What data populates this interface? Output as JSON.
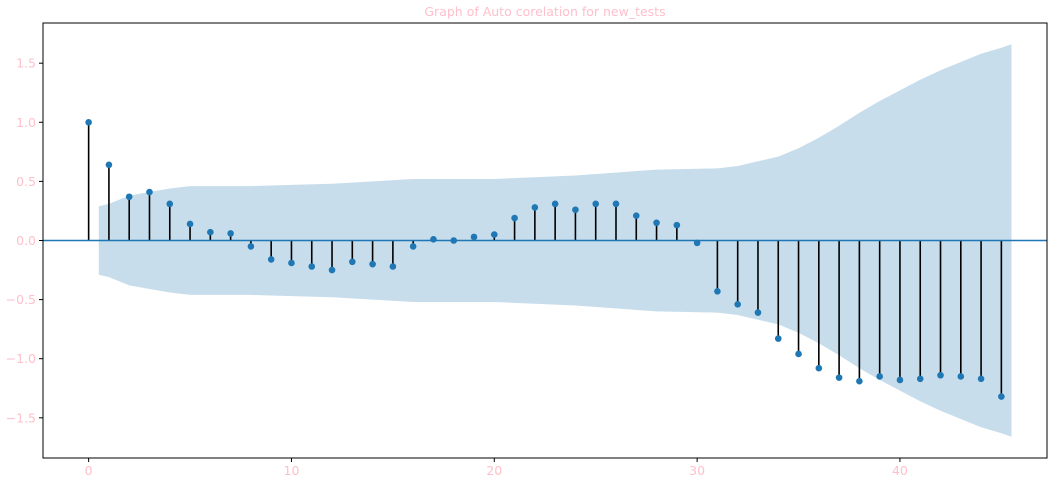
{
  "chart_data": {
    "type": "stem",
    "title": "Graph of Auto corelation for new_tests",
    "xlabel": "",
    "ylabel": "",
    "xlim": [
      -2.25,
      47.25
    ],
    "ylim": [
      -1.84,
      1.84
    ],
    "xticks": [
      0,
      10,
      20,
      30,
      40
    ],
    "yticks": [
      -1.5,
      -1.0,
      -0.5,
      0.0,
      0.5,
      1.0,
      1.5
    ],
    "ytick_labels": [
      "−1.5",
      "−1.0",
      "−0.5",
      "0.0",
      "0.5",
      "1.0",
      "1.5"
    ],
    "grid": false,
    "lags": [
      0,
      1,
      2,
      3,
      4,
      5,
      6,
      7,
      8,
      9,
      10,
      11,
      12,
      13,
      14,
      15,
      16,
      17,
      18,
      19,
      20,
      21,
      22,
      23,
      24,
      25,
      26,
      27,
      28,
      29,
      30,
      31,
      32,
      33,
      34,
      35,
      36,
      37,
      38,
      39,
      40,
      41,
      42,
      43,
      44,
      45
    ],
    "acf": [
      1.0,
      0.64,
      0.37,
      0.41,
      0.31,
      0.14,
      0.07,
      0.06,
      -0.05,
      -0.16,
      -0.19,
      -0.22,
      -0.25,
      -0.18,
      -0.2,
      -0.22,
      -0.05,
      0.01,
      0.0,
      0.03,
      0.05,
      0.19,
      0.28,
      0.31,
      0.26,
      0.31,
      0.31,
      0.21,
      0.15,
      0.13,
      -0.02,
      -0.43,
      -0.54,
      -0.61,
      -0.83,
      -0.96,
      -1.08,
      -1.16,
      -1.19,
      -1.15,
      -1.18,
      -1.17,
      -1.14,
      -1.15,
      -1.17,
      -1.32
    ],
    "confidence_band": {
      "lags": [
        0.5,
        1,
        2,
        3,
        4,
        5,
        6,
        7,
        8,
        10,
        12,
        14,
        16,
        20,
        24,
        28,
        31,
        32,
        33,
        34,
        35,
        36,
        37,
        38,
        39,
        40,
        41,
        42,
        43,
        44,
        45,
        45.5
      ],
      "upper": [
        0.29,
        0.31,
        0.38,
        0.41,
        0.44,
        0.46,
        0.46,
        0.46,
        0.46,
        0.47,
        0.48,
        0.5,
        0.52,
        0.52,
        0.55,
        0.6,
        0.61,
        0.63,
        0.67,
        0.71,
        0.78,
        0.87,
        0.97,
        1.08,
        1.18,
        1.27,
        1.36,
        1.44,
        1.51,
        1.58,
        1.63,
        1.66
      ]
    },
    "colors": {
      "marker": "#1f77b4",
      "stem": "#000000",
      "band": "#1f77b4",
      "baseline": "#1f77b4",
      "tick_text": "#ffc0cb"
    }
  }
}
